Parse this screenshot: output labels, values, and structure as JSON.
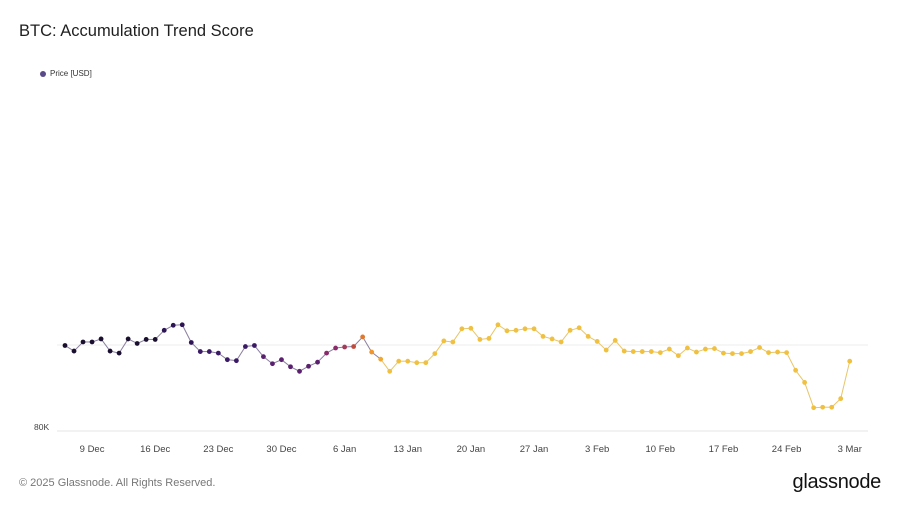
{
  "header": {
    "title": "BTC: Accumulation Trend Score"
  },
  "legend": {
    "label": "Price [USD]",
    "color": "#5a4a8a"
  },
  "footer": {
    "copyright": "© 2025 Glassnode. All Rights Reserved.",
    "brand": "glassnode"
  },
  "chart_data": {
    "type": "line",
    "title": "BTC: Accumulation Trend Score",
    "xlabel": "",
    "ylabel": "",
    "x_tick_labels": [
      "9 Dec",
      "16 Dec",
      "23 Dec",
      "30 Dec",
      "6 Jan",
      "13 Jan",
      "20 Jan",
      "27 Jan",
      "3 Feb",
      "10 Feb",
      "17 Feb",
      "24 Feb",
      "3 Mar"
    ],
    "y_tick_labels": [
      "80K"
    ],
    "ylim": [
      80000,
      110000
    ],
    "grid": "horizontal",
    "legend_position": "top-left",
    "series": [
      {
        "name": "Price [USD]",
        "start_date": "2024-12-06",
        "values": [
          96900,
          95800,
          97600,
          97600,
          98200,
          95800,
          95400,
          98200,
          97300,
          98100,
          98100,
          99900,
          100900,
          101000,
          97500,
          95700,
          95700,
          95400,
          94100,
          93900,
          96700,
          96900,
          94700,
          93300,
          94100,
          92700,
          91800,
          92800,
          93600,
          95400,
          96400,
          96600,
          96700,
          98600,
          95600,
          94200,
          91800,
          93800,
          93800,
          93500,
          93500,
          95300,
          97800,
          97600,
          100200,
          100300,
          98100,
          98300,
          101000,
          99800,
          99900,
          100200,
          100200,
          98700,
          98200,
          97600,
          99900,
          100400,
          98700,
          97700,
          96000,
          97900,
          95800,
          95700,
          95700,
          95700,
          95500,
          96200,
          94900,
          96400,
          95600,
          96200,
          96300,
          95400,
          95300,
          95300,
          95700,
          96500,
          95500,
          95600,
          95500,
          92000,
          89600,
          84600,
          84700,
          84700,
          86400,
          93800
        ],
        "point_colors": [
          "#1a0f2e",
          "#1a0f2e",
          "#1a0f2e",
          "#1a0f2e",
          "#1a0f2e",
          "#1a0f2e",
          "#1a0f2e",
          "#1a0f2e",
          "#1a0f2e",
          "#1a0f2e",
          "#1a0f2e",
          "#2d1455",
          "#2d1455",
          "#2d1455",
          "#2d1455",
          "#3a1a66",
          "#3a1a66",
          "#3a1a66",
          "#3a1a66",
          "#3a1a66",
          "#3a1a66",
          "#3a1a66",
          "#5a1f6e",
          "#5a1f6e",
          "#5a1f6e",
          "#5a1f6e",
          "#5a1f6e",
          "#5a1f6e",
          "#5a1f6e",
          "#8a2a6a",
          "#8a2a6a",
          "#a23a5a",
          "#c24a3a",
          "#e0782c",
          "#f0962e",
          "#f0a830",
          "#f0c040",
          "#f0c040",
          "#f0c040",
          "#f0c040",
          "#f0c040",
          "#f0c040",
          "#f0c040",
          "#f0c040",
          "#f0c040",
          "#f0c040",
          "#f0c040",
          "#f0c040",
          "#f0c040",
          "#f0c040",
          "#f0c040",
          "#f0c040",
          "#f0c040",
          "#f0c040",
          "#f0c040",
          "#f0c040",
          "#f0c040",
          "#f0c040",
          "#f0c040",
          "#f0c040",
          "#f0c040",
          "#f0c040",
          "#f0c040",
          "#f0c040",
          "#f0c040",
          "#f0c040",
          "#f0c040",
          "#f0c040",
          "#f0c040",
          "#f0c040",
          "#f0c040",
          "#f0c040",
          "#f0c040",
          "#f0c040",
          "#f0c040",
          "#f0c040",
          "#f0c040",
          "#f0c040",
          "#f0c040",
          "#f0c040",
          "#f0c040",
          "#f0c040",
          "#f0c040",
          "#f0c040",
          "#f0c040",
          "#f0c040",
          "#f0c040",
          "#f0c040"
        ]
      }
    ]
  }
}
